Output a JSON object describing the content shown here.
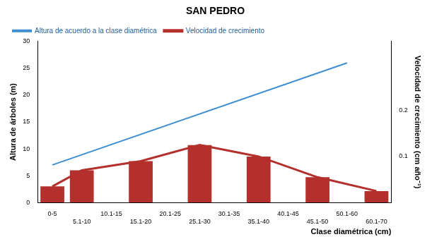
{
  "chart_data": {
    "type": "bar",
    "title": "SAN PEDRO",
    "x_label": "Clase diamétrica (cm)",
    "y_label": "Altura de árboles (m)",
    "y2_label": "Velocidad de crecimiento (cm año⁻¹)",
    "categories": [
      "0-5",
      "5.1-10",
      "10.1-15",
      "15.1-20",
      "20.1-25",
      "25.1-30",
      "30.1-35",
      "35.1-40",
      "40.1-45",
      "45.1-50",
      "50.1-60",
      "60.1-70"
    ],
    "series": [
      {
        "name": "Altura de acuerdo a la clase diamétrica",
        "type": "line",
        "color": "#3d8fd1",
        "values": [
          7,
          null,
          null,
          null,
          null,
          null,
          null,
          null,
          null,
          null,
          26,
          null
        ]
      },
      {
        "name": "Velocidad de crecimiento",
        "type": "bar",
        "color": "#b3302c",
        "axis": "y2",
        "values": [
          0.035,
          0.07,
          null,
          0.09,
          null,
          0.125,
          null,
          0.1,
          null,
          0.055,
          null,
          0.025
        ]
      }
    ],
    "ylim": [
      0,
      30
    ],
    "yticks": [
      0,
      5,
      10,
      15,
      20,
      25,
      30
    ],
    "y2lim": [
      0,
      0.35
    ],
    "y2ticks": [
      0.1,
      0.2
    ],
    "grid": false,
    "legend": "top"
  }
}
